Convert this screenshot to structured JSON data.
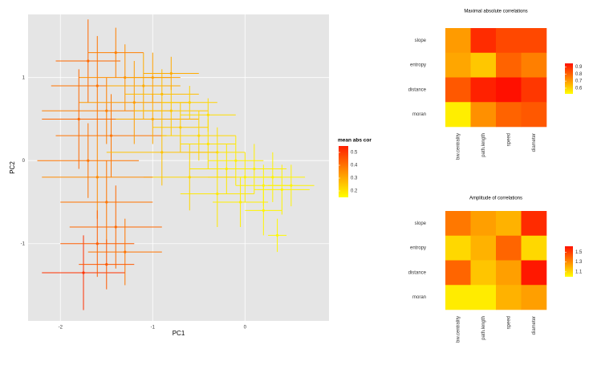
{
  "chart_data": [
    {
      "type": "scatter",
      "x_label": "PC1",
      "y_label": "PC2",
      "legend_title": "mean abs cor",
      "xlim": [
        -2.35,
        0.91
      ],
      "ylim": [
        -1.93,
        1.76
      ],
      "xticks": [
        -2,
        -1,
        0
      ],
      "yticks": [
        -1,
        0,
        1
      ],
      "grid": true,
      "colors": [
        "#ffff00",
        "#ff2000"
      ],
      "color_lim": [
        0.15,
        0.55
      ],
      "color_ticks": [
        0.2,
        0.3,
        0.4,
        0.5
      ],
      "x": [
        -1.75,
        -1.7,
        -1.6,
        -1.5,
        -1.45,
        -1.3,
        -1.2,
        -1.1,
        -1.0,
        -0.9,
        -0.8,
        -0.7,
        -0.6,
        -0.5,
        -0.4,
        -0.3,
        -0.2,
        -0.1,
        0.0,
        0.1,
        0.2,
        0.3,
        0.4,
        0.5,
        -0.3,
        -0.6,
        -0.9,
        -1.6,
        -1.5,
        -1.4,
        -1.6,
        -1.3,
        -1.5,
        -1.7,
        -1.8,
        -1.0,
        -0.8,
        -1.4,
        0.2,
        0.35,
        -0.05,
        -0.4
      ],
      "y": [
        -1.35,
        1.2,
        0.9,
        0.6,
        0.3,
        1.0,
        0.7,
        0.9,
        0.5,
        0.8,
        0.6,
        0.4,
        0.7,
        0.3,
        0.2,
        0.1,
        -0.1,
        0.0,
        -0.2,
        -0.1,
        -0.3,
        -0.2,
        -0.35,
        -0.3,
        -0.4,
        -0.2,
        0.1,
        -0.2,
        -0.5,
        -0.8,
        -1.0,
        -1.1,
        -1.25,
        0.0,
        0.5,
        1.0,
        1.05,
        1.3,
        -0.6,
        -0.9,
        -0.5,
        0.55
      ],
      "x_error": [
        0.45,
        0.35,
        0.5,
        0.7,
        0.6,
        0.5,
        0.6,
        0.4,
        0.5,
        0.4,
        0.4,
        0.3,
        0.3,
        0.4,
        0.3,
        0.3,
        0.4,
        0.3,
        0.4,
        0.35,
        0.3,
        0.35,
        0.3,
        0.25,
        0.4,
        0.5,
        0.6,
        0.6,
        0.5,
        0.5,
        0.4,
        0.4,
        0.3,
        0.55,
        0.4,
        0.3,
        0.3,
        0.3,
        0.2,
        0.1,
        0.3,
        0.3
      ],
      "y_error": [
        0.45,
        0.5,
        0.6,
        0.4,
        0.5,
        0.4,
        0.5,
        0.4,
        0.3,
        0.3,
        0.3,
        0.3,
        0.2,
        0.3,
        0.3,
        0.3,
        0.3,
        0.3,
        0.3,
        0.3,
        0.25,
        0.3,
        0.3,
        0.25,
        0.4,
        0.4,
        0.4,
        0.5,
        0.5,
        0.5,
        0.4,
        0.4,
        0.3,
        0.45,
        0.6,
        0.3,
        0.2,
        0.3,
        0.3,
        0.2,
        0.3,
        0.2
      ],
      "values": [
        0.52,
        0.42,
        0.4,
        0.38,
        0.4,
        0.35,
        0.33,
        0.3,
        0.3,
        0.27,
        0.25,
        0.24,
        0.23,
        0.22,
        0.2,
        0.2,
        0.19,
        0.18,
        0.18,
        0.18,
        0.17,
        0.17,
        0.17,
        0.17,
        0.19,
        0.22,
        0.26,
        0.36,
        0.4,
        0.42,
        0.44,
        0.4,
        0.45,
        0.4,
        0.42,
        0.32,
        0.3,
        0.38,
        0.17,
        0.16,
        0.18,
        0.21
      ]
    },
    {
      "type": "heatmap",
      "title": "Maximal absolute correlations",
      "rows": [
        "slope",
        "entropy",
        "distance",
        "moran"
      ],
      "columns": [
        "bw.centrality",
        "path.length",
        "speed",
        "diameter"
      ],
      "values": [
        [
          0.7,
          0.9,
          0.85,
          0.85
        ],
        [
          0.68,
          0.62,
          0.8,
          0.75
        ],
        [
          0.82,
          0.92,
          0.95,
          0.88
        ],
        [
          0.55,
          0.72,
          0.8,
          0.82
        ]
      ],
      "colors": [
        "#ffff00",
        "#ff1000"
      ],
      "color_lim": [
        0.52,
        0.95
      ],
      "color_ticks": [
        0.6,
        0.7,
        0.8,
        0.9
      ]
    },
    {
      "type": "heatmap",
      "title": "Amplitude of correlations",
      "rows": [
        "slope",
        "entropy",
        "distance",
        "moran"
      ],
      "columns": [
        "bw.centrality",
        "path.length",
        "speed",
        "diameter"
      ],
      "values": [
        [
          1.35,
          1.25,
          1.2,
          1.55
        ],
        [
          1.1,
          1.2,
          1.4,
          1.1
        ],
        [
          1.4,
          1.15,
          1.25,
          1.6
        ],
        [
          1.05,
          1.05,
          1.2,
          1.25
        ]
      ],
      "colors": [
        "#ffff00",
        "#ff1000"
      ],
      "color_lim": [
        1.0,
        1.62
      ],
      "color_ticks": [
        1.1,
        1.3,
        1.5
      ]
    }
  ]
}
